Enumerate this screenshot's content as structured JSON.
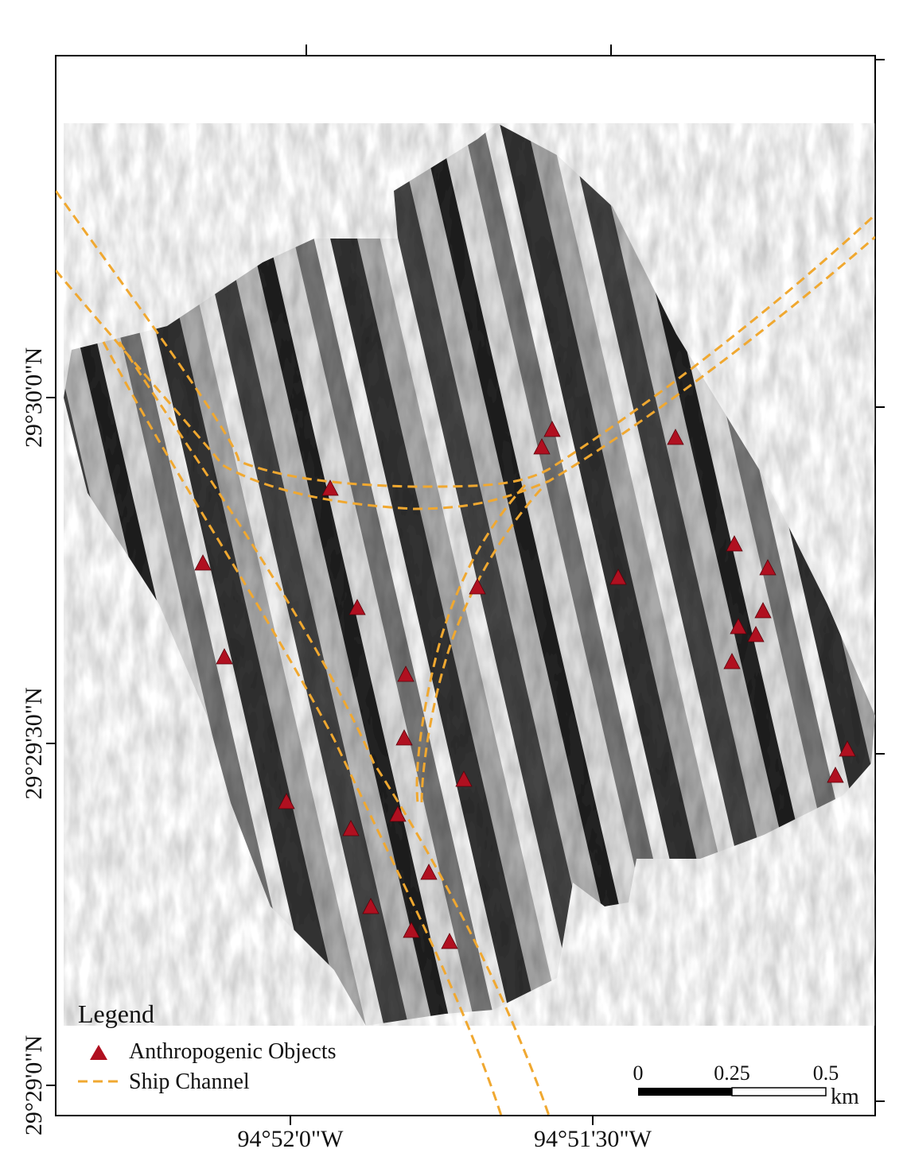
{
  "map": {
    "lat_labels": [
      "29°30'0\"N",
      "29°29'30\"N",
      "29°29'0\"N"
    ],
    "lon_labels": [
      "94°52'0\"W",
      "94°51'30\"W"
    ],
    "legend": {
      "title": "Legend",
      "items": [
        "Anthropogenic Objects",
        "Ship Channel"
      ]
    },
    "scale_bar": {
      "labels": [
        "0",
        "0.25",
        "0.5"
      ],
      "unit": "km"
    }
  }
}
